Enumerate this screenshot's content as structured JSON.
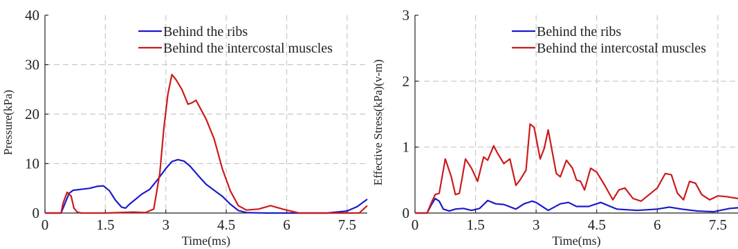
{
  "chart_data": [
    {
      "type": "line",
      "xlabel": "Time(ms)",
      "ylabel": "Pressure(kPa)",
      "xlim": [
        0,
        8
      ],
      "ylim": [
        0,
        40
      ],
      "xticks": [
        "0",
        "1.5",
        "3",
        "4.5",
        "6",
        "7.5"
      ],
      "xtick_values": [
        0,
        1.5,
        3,
        4.5,
        6,
        7.5
      ],
      "yticks": [
        "0",
        "10",
        "20",
        "30",
        "40"
      ],
      "ytick_values": [
        0,
        10,
        20,
        30,
        40
      ],
      "grid": true,
      "legend_position": "top-right",
      "series": [
        {
          "name": "Behind the ribs",
          "color": "#1a1acc",
          "x": [
            0,
            0.4,
            0.5,
            0.6,
            0.7,
            0.9,
            1.1,
            1.3,
            1.45,
            1.6,
            1.75,
            1.9,
            2.0,
            2.1,
            2.25,
            2.4,
            2.6,
            2.8,
            3.0,
            3.15,
            3.3,
            3.45,
            3.6,
            3.8,
            4.0,
            4.2,
            4.4,
            4.6,
            4.8,
            5.0,
            5.5,
            6.0,
            6.5,
            7.0,
            7.5,
            7.75,
            8.0
          ],
          "y": [
            0,
            0,
            2.0,
            4.0,
            4.6,
            4.8,
            5.0,
            5.4,
            5.5,
            4.5,
            2.6,
            1.2,
            1.0,
            1.8,
            2.8,
            3.8,
            4.8,
            6.8,
            9.0,
            10.4,
            10.8,
            10.5,
            9.5,
            7.6,
            5.8,
            4.6,
            3.4,
            1.8,
            0.5,
            0.1,
            0,
            0,
            0,
            0,
            0.4,
            1.3,
            2.8
          ]
        },
        {
          "name": "Behind the intercostal muscles",
          "color": "#cc1a1a",
          "x": [
            0,
            0.4,
            0.45,
            0.55,
            0.65,
            0.72,
            0.8,
            0.9,
            1.5,
            2.2,
            2.5,
            2.7,
            2.85,
            2.95,
            3.05,
            3.15,
            3.25,
            3.4,
            3.55,
            3.65,
            3.75,
            4.0,
            4.2,
            4.4,
            4.6,
            4.8,
            5.0,
            5.3,
            5.6,
            5.9,
            6.3,
            7.0,
            7.5,
            7.8,
            8.0
          ],
          "y": [
            0,
            0,
            2.0,
            4.2,
            3.4,
            1.0,
            0.2,
            0,
            0,
            0.2,
            0.1,
            0.8,
            8.0,
            17.0,
            24.0,
            28.0,
            27.0,
            25.0,
            22.0,
            22.3,
            22.8,
            19.0,
            15.0,
            9.0,
            4.5,
            1.5,
            0.6,
            0.8,
            1.5,
            0.8,
            0,
            0,
            0,
            0,
            1.5
          ]
        }
      ]
    },
    {
      "type": "line",
      "xlabel": "Time(ms)",
      "ylabel": "Effective Stress(kPa)(v-m)",
      "xlim": [
        0,
        8
      ],
      "ylim": [
        0,
        3
      ],
      "xticks": [
        "0",
        "1.5",
        "3",
        "4.5",
        "6",
        "7.5"
      ],
      "xtick_values": [
        0,
        1.5,
        3,
        4.5,
        6,
        7.5
      ],
      "yticks": [
        "0",
        "1",
        "2",
        "3"
      ],
      "ytick_values": [
        0,
        1,
        2,
        3
      ],
      "grid": true,
      "legend_position": "top-right",
      "series": [
        {
          "name": "Behind the ribs",
          "color": "#1a1acc",
          "x": [
            0,
            0.3,
            0.4,
            0.5,
            0.6,
            0.7,
            0.85,
            1.0,
            1.2,
            1.4,
            1.6,
            1.8,
            2.0,
            2.2,
            2.5,
            2.7,
            2.9,
            3.0,
            3.3,
            3.6,
            3.8,
            4.0,
            4.3,
            4.6,
            5.0,
            5.5,
            6.0,
            6.3,
            6.6,
            7.0,
            7.4,
            7.8,
            8.0
          ],
          "y": [
            0,
            0,
            0.12,
            0.22,
            0.18,
            0.06,
            0.03,
            0.06,
            0.07,
            0.04,
            0.07,
            0.19,
            0.14,
            0.13,
            0.06,
            0.14,
            0.18,
            0.16,
            0.04,
            0.14,
            0.16,
            0.1,
            0.1,
            0.16,
            0.06,
            0.04,
            0.06,
            0.09,
            0.06,
            0.03,
            0.02,
            0.07,
            0.08
          ]
        },
        {
          "name": "Behind the intercostal muscles",
          "color": "#cc1a1a",
          "x": [
            0,
            0.3,
            0.4,
            0.5,
            0.6,
            0.75,
            0.9,
            1.0,
            1.1,
            1.25,
            1.4,
            1.55,
            1.7,
            1.8,
            1.95,
            2.05,
            2.2,
            2.35,
            2.5,
            2.6,
            2.75,
            2.85,
            2.95,
            3.1,
            3.2,
            3.3,
            3.5,
            3.6,
            3.75,
            3.9,
            4.0,
            4.1,
            4.2,
            4.35,
            4.5,
            4.7,
            4.9,
            5.05,
            5.2,
            5.4,
            5.6,
            5.8,
            6.0,
            6.2,
            6.35,
            6.5,
            6.65,
            6.8,
            6.95,
            7.1,
            7.3,
            7.5,
            7.7,
            8.0
          ],
          "y": [
            0,
            0,
            0.15,
            0.28,
            0.3,
            0.82,
            0.55,
            0.28,
            0.3,
            0.82,
            0.68,
            0.48,
            0.85,
            0.8,
            1.02,
            0.9,
            0.75,
            0.82,
            0.42,
            0.5,
            0.65,
            1.35,
            1.3,
            0.82,
            0.98,
            1.26,
            0.6,
            0.55,
            0.8,
            0.68,
            0.5,
            0.48,
            0.35,
            0.68,
            0.62,
            0.42,
            0.2,
            0.35,
            0.38,
            0.22,
            0.18,
            0.28,
            0.38,
            0.6,
            0.58,
            0.3,
            0.2,
            0.48,
            0.45,
            0.28,
            0.2,
            0.26,
            0.25,
            0.22
          ]
        }
      ]
    }
  ]
}
